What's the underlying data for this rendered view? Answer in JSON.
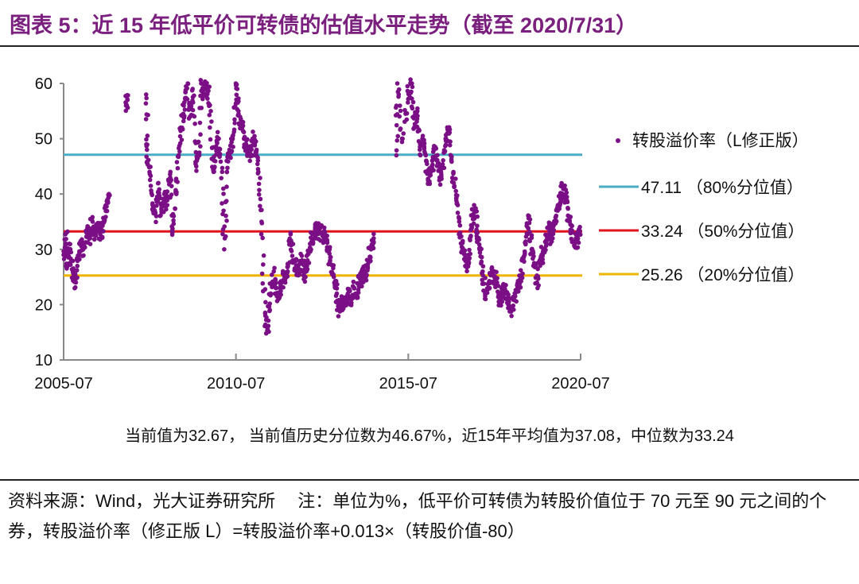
{
  "title": "图表 5：近 15 年低平价可转债的估值水平走势（截至 2020/7/31）",
  "note": "当前值为32.67， 当前值历史分位数为46.67%，近15年平均值为37.08，中位数为33.24",
  "source": "资料来源：Wind，光大证券研究所　 注：单位为%，低平价可转债为转股价值位于 70 元至 90 元之间的个券，转股溢价率（修正版 L）=转股溢价率+0.013×（转股价值-80）",
  "chart_data": {
    "type": "scatter",
    "ylim": [
      10,
      60
    ],
    "yticks": [
      "10",
      "20",
      "30",
      "40",
      "50",
      "60"
    ],
    "xlim": [
      "2005-07",
      "2020-07"
    ],
    "xticks": [
      "2005-07",
      "2010-07",
      "2015-07",
      "2020-07"
    ],
    "grid": false,
    "legend_position": "right",
    "series": [
      {
        "name": "转股溢价率（L修正版）",
        "color": "#7b0f86",
        "points": [
          [
            "2005-07",
            29
          ],
          [
            "2005-08",
            33
          ],
          [
            "2005-08",
            27
          ],
          [
            "2005-09",
            31
          ],
          [
            "2005-10",
            26
          ],
          [
            "2005-11",
            24
          ],
          [
            "2005-12",
            28
          ],
          [
            "2006-01",
            31
          ],
          [
            "2006-02",
            30
          ],
          [
            "2006-03",
            33
          ],
          [
            "2006-04",
            32
          ],
          [
            "2006-05",
            35
          ],
          [
            "2006-06",
            33
          ],
          [
            "2006-07",
            34
          ],
          [
            "2006-08",
            32
          ],
          [
            "2006-09",
            35
          ],
          [
            "2006-10",
            38
          ],
          [
            "2006-11",
            40
          ],
          [
            "2007-05",
            56
          ],
          [
            "2007-05",
            57
          ],
          [
            "2007-12",
            58
          ],
          [
            "2007-12",
            48
          ],
          [
            "2008-01",
            44
          ],
          [
            "2008-02",
            38
          ],
          [
            "2008-03",
            36
          ],
          [
            "2008-04",
            42
          ],
          [
            "2008-05",
            37
          ],
          [
            "2008-06",
            40
          ],
          [
            "2008-07",
            38
          ],
          [
            "2008-08",
            44
          ],
          [
            "2008-09",
            33
          ],
          [
            "2008-10",
            40
          ],
          [
            "2008-11",
            47
          ],
          [
            "2008-12",
            52
          ],
          [
            "2009-01",
            56
          ],
          [
            "2009-02",
            60
          ],
          [
            "2009-03",
            54
          ],
          [
            "2009-04",
            59
          ],
          [
            "2009-05",
            45
          ],
          [
            "2009-06",
            47
          ],
          [
            "2009-07",
            60
          ],
          [
            "2009-08",
            58
          ],
          [
            "2009-09",
            60
          ],
          [
            "2009-10",
            55
          ],
          [
            "2009-11",
            44
          ],
          [
            "2009-12",
            48
          ],
          [
            "2010-01",
            50
          ],
          [
            "2010-02",
            44
          ],
          [
            "2010-03",
            30
          ],
          [
            "2010-04",
            46
          ],
          [
            "2010-05",
            48
          ],
          [
            "2010-06",
            50
          ],
          [
            "2010-07",
            60
          ],
          [
            "2010-08",
            55
          ],
          [
            "2010-09",
            52
          ],
          [
            "2010-10",
            50
          ],
          [
            "2010-11",
            48
          ],
          [
            "2010-12",
            46
          ],
          [
            "2011-01",
            50
          ],
          [
            "2011-02",
            48
          ],
          [
            "2011-03",
            44
          ],
          [
            "2011-04",
            35
          ],
          [
            "2011-05",
            18
          ],
          [
            "2011-06",
            16
          ],
          [
            "2011-07",
            22
          ],
          [
            "2011-08",
            26
          ],
          [
            "2011-09",
            23
          ],
          [
            "2011-10",
            21
          ],
          [
            "2011-11",
            24
          ],
          [
            "2011-12",
            25
          ],
          [
            "2012-01",
            26
          ],
          [
            "2012-02",
            33
          ],
          [
            "2012-03",
            28
          ],
          [
            "2012-04",
            27
          ],
          [
            "2012-05",
            26
          ],
          [
            "2012-06",
            28
          ],
          [
            "2012-07",
            25
          ],
          [
            "2012-08",
            28
          ],
          [
            "2012-09",
            31
          ],
          [
            "2012-10",
            33
          ],
          [
            "2012-11",
            34
          ],
          [
            "2012-12",
            33
          ],
          [
            "2013-01",
            33
          ],
          [
            "2013-02",
            32
          ],
          [
            "2013-03",
            30
          ],
          [
            "2013-04",
            28
          ],
          [
            "2013-05",
            25
          ],
          [
            "2013-06",
            22
          ],
          [
            "2013-07",
            19
          ],
          [
            "2013-08",
            20
          ],
          [
            "2013-09",
            21
          ],
          [
            "2013-10",
            22
          ],
          [
            "2013-11",
            21
          ],
          [
            "2013-12",
            23
          ],
          [
            "2014-01",
            22
          ],
          [
            "2014-02",
            24
          ],
          [
            "2014-03",
            26
          ],
          [
            "2014-04",
            25
          ],
          [
            "2014-05",
            28
          ],
          [
            "2014-06",
            30
          ],
          [
            "2014-07",
            32
          ],
          [
            "2015-03",
            47
          ],
          [
            "2015-03",
            60
          ],
          [
            "2015-05",
            50
          ],
          [
            "2015-07",
            58
          ],
          [
            "2015-08",
            60
          ],
          [
            "2015-09",
            52
          ],
          [
            "2015-10",
            55
          ],
          [
            "2015-11",
            48
          ],
          [
            "2015-12",
            50
          ],
          [
            "2016-01",
            47
          ],
          [
            "2016-02",
            42
          ],
          [
            "2016-03",
            44
          ],
          [
            "2016-04",
            48
          ],
          [
            "2016-05",
            46
          ],
          [
            "2016-06",
            43
          ],
          [
            "2016-07",
            45
          ],
          [
            "2016-08",
            50
          ],
          [
            "2016-09",
            52
          ],
          [
            "2016-10",
            46
          ],
          [
            "2016-11",
            42
          ],
          [
            "2016-12",
            38
          ],
          [
            "2017-01",
            33
          ],
          [
            "2017-02",
            30
          ],
          [
            "2017-03",
            27
          ],
          [
            "2017-04",
            29
          ],
          [
            "2017-05",
            34
          ],
          [
            "2017-06",
            38
          ],
          [
            "2017-07",
            33
          ],
          [
            "2017-08",
            30
          ],
          [
            "2017-09",
            26
          ],
          [
            "2017-10",
            21
          ],
          [
            "2017-11",
            23
          ],
          [
            "2017-12",
            26
          ],
          [
            "2018-01",
            25
          ],
          [
            "2018-02",
            24
          ],
          [
            "2018-03",
            20
          ],
          [
            "2018-04",
            23
          ],
          [
            "2018-05",
            22
          ],
          [
            "2018-06",
            20
          ],
          [
            "2018-07",
            19
          ],
          [
            "2018-08",
            21
          ],
          [
            "2018-09",
            23
          ],
          [
            "2018-10",
            25
          ],
          [
            "2018-11",
            28
          ],
          [
            "2018-12",
            31
          ],
          [
            "2019-01",
            36
          ],
          [
            "2019-02",
            30
          ],
          [
            "2019-03",
            27
          ],
          [
            "2019-04",
            24
          ],
          [
            "2019-05",
            28
          ],
          [
            "2019-06",
            30
          ],
          [
            "2019-07",
            31
          ],
          [
            "2019-08",
            34
          ],
          [
            "2019-09",
            32
          ],
          [
            "2019-10",
            35
          ],
          [
            "2019-11",
            38
          ],
          [
            "2019-12",
            40
          ],
          [
            "2020-01",
            41
          ],
          [
            "2020-02",
            39
          ],
          [
            "2020-03",
            35
          ],
          [
            "2020-04",
            33
          ],
          [
            "2020-05",
            31
          ],
          [
            "2020-06",
            32
          ],
          [
            "2020-07",
            32.67
          ]
        ]
      }
    ],
    "reference_lines": [
      {
        "value": 47.11,
        "label": "47.11",
        "desc": "（80%分位值）",
        "color": "#4bacc6"
      },
      {
        "value": 33.24,
        "label": "33.24",
        "desc": "（50%分位值）",
        "color": "#e0141e"
      },
      {
        "value": 25.26,
        "label": "25.26",
        "desc": "（20%分位值）",
        "color": "#f0b400"
      }
    ]
  }
}
